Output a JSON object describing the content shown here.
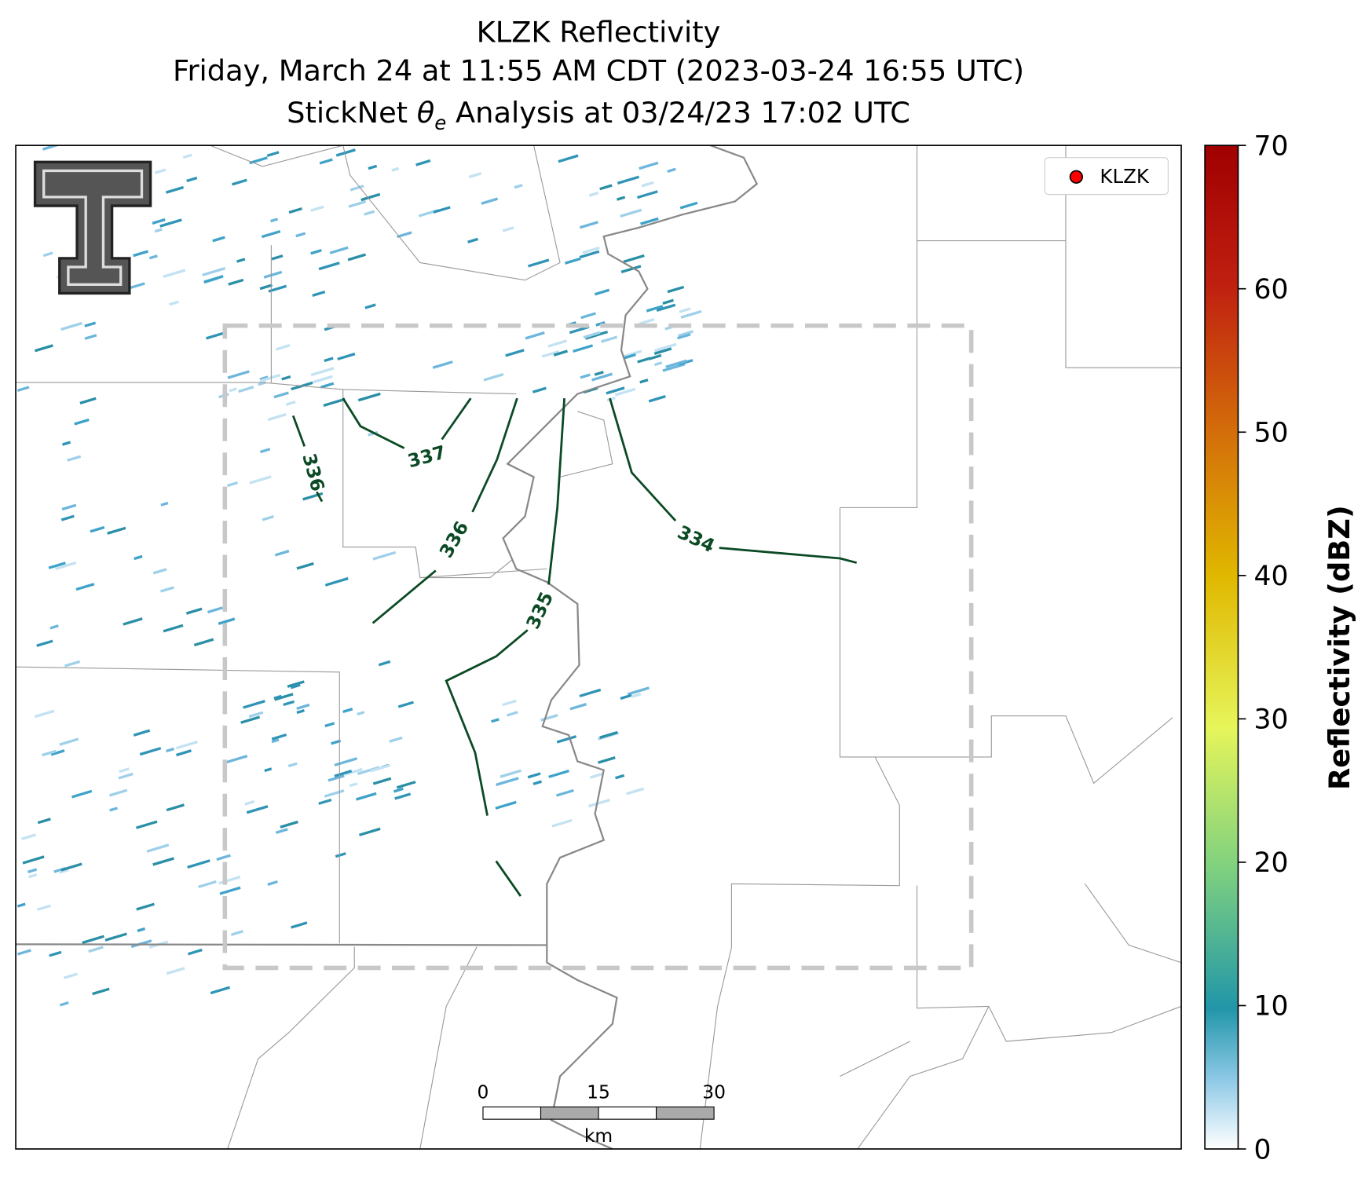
{
  "title": {
    "line1": "KLZK Reflectivity",
    "line2": "Friday, March 24 at 11:55 AM CDT (2023-03-24 16:55 UTC)",
    "line3": {
      "prefix": "StickNet ",
      "symbol": "θ",
      "subscript": "e",
      "suffix": " Analysis at 03/24/23 17:02 UTC"
    }
  },
  "legend": {
    "label": "KLZK",
    "color": "#ff0000",
    "position": "upper right"
  },
  "contour_labels": [
    336,
    337,
    336,
    335,
    334
  ],
  "scale_bar": {
    "ticks": [
      0,
      15,
      30
    ],
    "unit": "km"
  },
  "colorbar": {
    "label": "Reflectivity (dBZ)",
    "lim": [
      0,
      70
    ],
    "ticks": [
      0,
      10,
      20,
      30,
      40,
      50,
      60,
      70
    ]
  }
}
